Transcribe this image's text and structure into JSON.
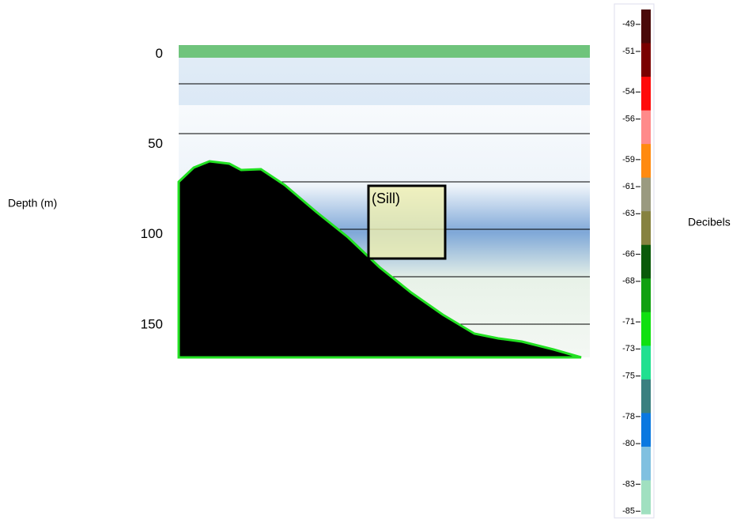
{
  "chart_data": {
    "type": "echogram",
    "ylabel": "Depth (m)",
    "ylim": [
      -5,
      168
    ],
    "yticks": [
      0,
      50,
      100,
      150
    ],
    "y_inverted": true,
    "annotation": "(Sill)",
    "colorbar": {
      "label": "Decibels",
      "lim": [
        -47.9,
        -85.2
      ],
      "ticks": [
        -49,
        -51,
        -54,
        -56,
        -59,
        -61,
        -63,
        -66,
        -68,
        -71,
        -73,
        -75,
        -78,
        -80,
        -83,
        -85
      ],
      "colors": [
        "#4a0a0a",
        "#7a0000",
        "#ff0a0a",
        "#ff8a8a",
        "#ff8a10",
        "#9a9a80",
        "#868240",
        "#0a5a0a",
        "#10a010",
        "#10e010",
        "#20e090",
        "#3a8080",
        "#0a78e0",
        "#80c0e0",
        "#a0e0c0"
      ]
    }
  }
}
